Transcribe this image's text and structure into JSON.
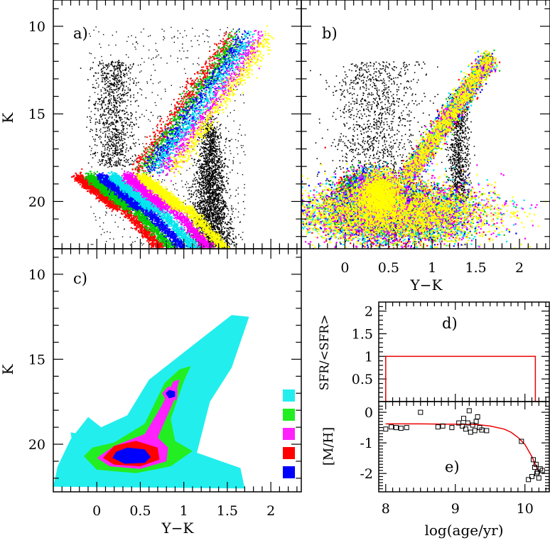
{
  "chart_data": [
    {
      "panel": "a)",
      "type": "scatter",
      "xlabel": "",
      "ylabel": "K",
      "xlim": [
        -0.5,
        2.35
      ],
      "ylim": [
        22.7,
        8.5
      ],
      "y_ticks": [
        "10",
        "15",
        "20"
      ],
      "x_ticks": []
    },
    {
      "panel": "b)",
      "type": "scatter",
      "xlabel": "Y−K",
      "ylabel": "",
      "xlim": [
        -0.5,
        2.35
      ],
      "ylim": [
        22.7,
        8.5
      ],
      "x_ticks": [
        "0",
        "0.5",
        "1",
        "1.5",
        "2"
      ],
      "y_ticks": []
    },
    {
      "panel": "c)",
      "type": "heatmap",
      "xlabel": "Y−K",
      "ylabel": "K",
      "xlim": [
        -0.5,
        2.35
      ],
      "ylim": [
        22.8,
        8.5
      ],
      "x_ticks": [
        "0",
        "0.5",
        "1",
        "1.5",
        "2"
      ],
      "y_ticks": [
        "10",
        "15",
        "20"
      ],
      "legend_colors": [
        "#22eeee",
        "#22ee22",
        "#ff22ff",
        "#ff0000",
        "#0000ff"
      ]
    },
    {
      "panel": "d)",
      "type": "line",
      "xlabel": "",
      "ylabel": "SFR/<SFR>",
      "xlim": [
        7.9,
        10.35
      ],
      "ylim": [
        0,
        2.2
      ],
      "y_ticks": [
        "0.5",
        "1",
        "1.5",
        "2"
      ],
      "series": [
        {
          "color": "#ee0000",
          "x": [
            8.0,
            8.0,
            10.15,
            10.15
          ],
          "y": [
            0,
            1,
            1,
            0
          ]
        }
      ]
    },
    {
      "panel": "e)",
      "type": "scatter",
      "xlabel": "log(age/yr)",
      "ylabel": "[M/H]",
      "xlim": [
        7.9,
        10.35
      ],
      "ylim": [
        -2.6,
        0.35
      ],
      "x_ticks": [
        "8",
        "9",
        "10"
      ],
      "y_ticks": [
        "0",
        "-1",
        "-2"
      ],
      "curve": {
        "color": "#ee0000",
        "x": [
          8.0,
          8.5,
          9.0,
          9.3,
          9.5,
          9.7,
          9.8,
          9.9,
          10.0,
          10.05,
          10.1,
          10.15,
          10.2
        ],
        "y": [
          -0.38,
          -0.38,
          -0.39,
          -0.4,
          -0.45,
          -0.55,
          -0.65,
          -0.82,
          -1.05,
          -1.25,
          -1.45,
          -1.7,
          -1.95
        ]
      },
      "points": {
        "x": [
          8.0,
          8.08,
          8.15,
          8.22,
          8.3,
          8.5,
          8.75,
          8.82,
          8.95,
          9.05,
          9.1,
          9.12,
          9.15,
          9.18,
          9.2,
          9.22,
          9.25,
          9.28,
          9.3,
          9.32,
          9.35,
          9.38,
          9.45,
          9.95,
          10.05,
          10.1,
          10.12,
          10.14,
          10.16,
          10.17,
          10.18,
          10.2,
          10.22,
          10.25
        ],
        "y": [
          -0.55,
          -0.48,
          -0.5,
          -0.52,
          -0.5,
          0.0,
          -0.48,
          -0.45,
          -0.5,
          -0.35,
          -0.45,
          -0.2,
          -0.55,
          -0.35,
          0.05,
          -0.65,
          -0.42,
          -0.6,
          -0.3,
          -0.15,
          -0.5,
          -0.58,
          -0.6,
          -0.95,
          -2.2,
          -2.1,
          -1.55,
          -1.8,
          -1.7,
          -2.0,
          -1.95,
          -2.15,
          -1.85,
          -1.9
        ]
      }
    }
  ]
}
